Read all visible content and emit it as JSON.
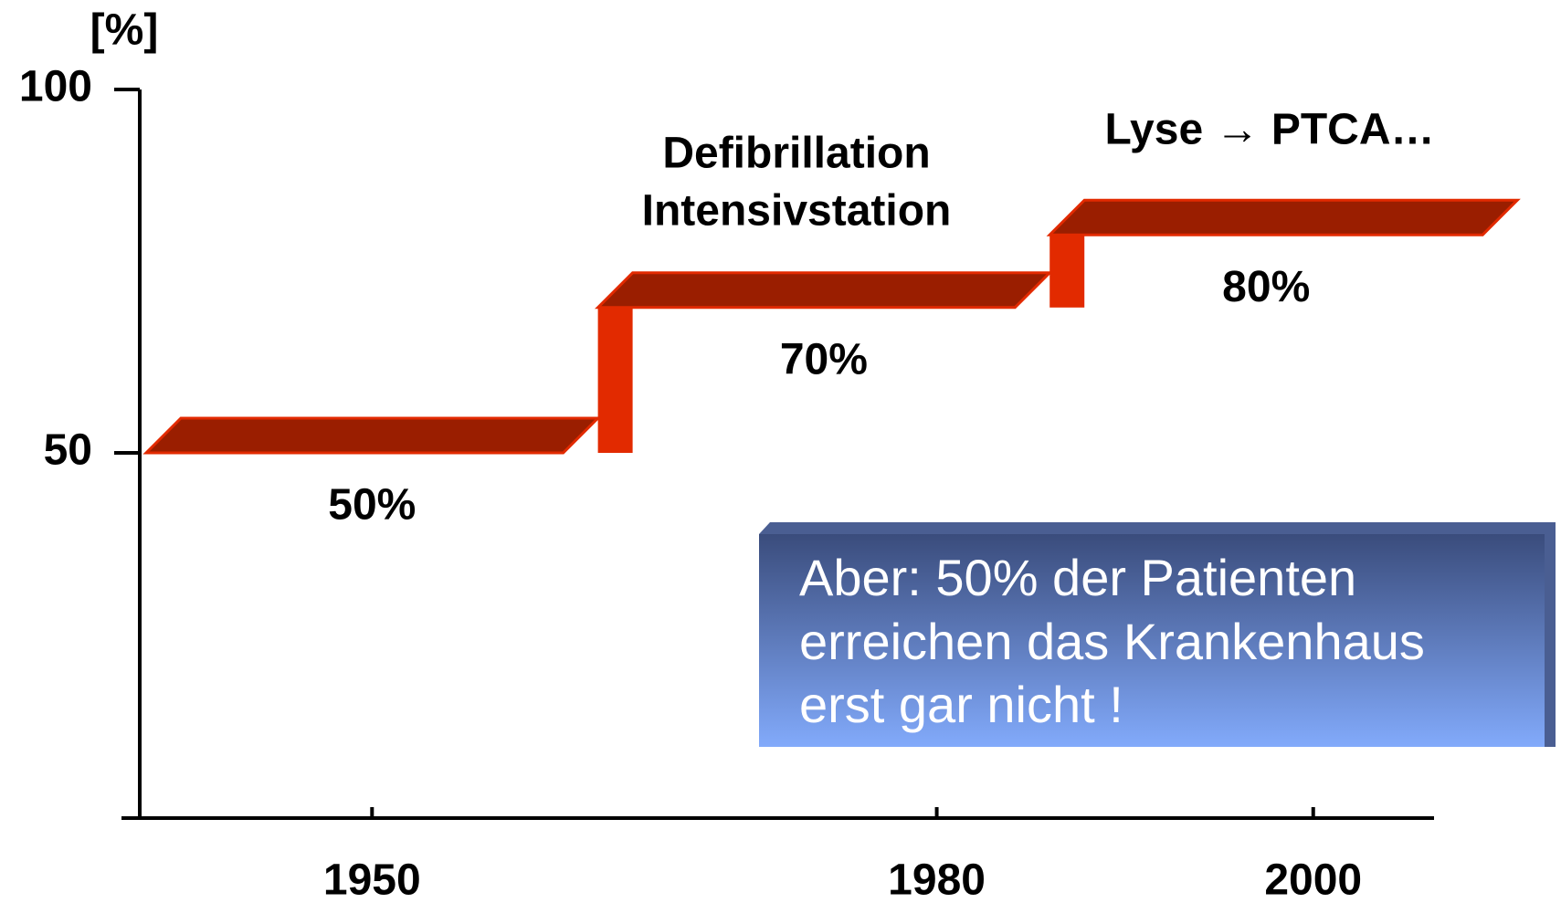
{
  "chart_data": {
    "type": "step",
    "ylabel": "[%]",
    "x": [
      1938,
      1962,
      1986
    ],
    "x_end": 2009,
    "values": [
      50,
      70,
      80
    ],
    "value_labels": [
      "50%",
      "70%",
      "80%"
    ],
    "color": "#9a1e00",
    "riser_color": "#e22a00",
    "xlim": [
      1938,
      2007
    ],
    "xticks": [
      1950,
      1980,
      2000
    ],
    "ylim": [
      0,
      100
    ],
    "yticks": [
      50,
      100
    ],
    "annotations": [
      "Defibrillation",
      "Intensivstation",
      "Lyse → PTCA…"
    ],
    "box_text": [
      "Aber: 50% der Patienten",
      "erreichen das Krankenhaus",
      "erst gar nicht !"
    ]
  }
}
